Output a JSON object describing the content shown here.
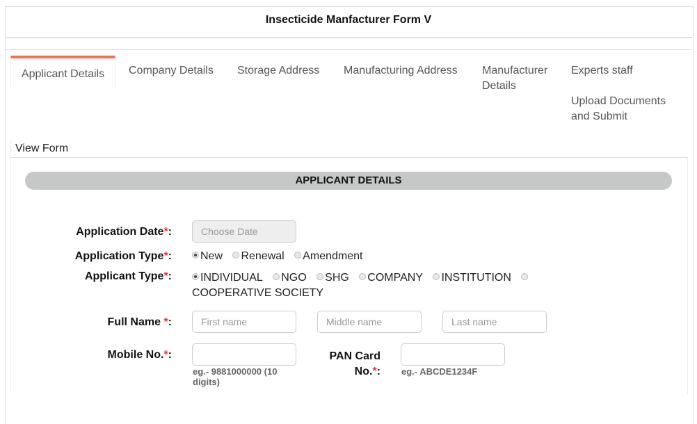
{
  "header": {
    "title": "Insecticide Manfacturer Form V"
  },
  "tabs": [
    {
      "label": "Applicant Details",
      "active": true
    },
    {
      "label": "Company Details"
    },
    {
      "label": "Storage Address"
    },
    {
      "label": "Manufacturing Address"
    },
    {
      "label": "Manufacturer Details"
    },
    {
      "label": "Experts staff"
    },
    {
      "label": "Upload Documents and Submit"
    }
  ],
  "accent_color": "#f4714f",
  "subtab": {
    "label": "View Form"
  },
  "section": {
    "title": "APPLICANT DETAILS"
  },
  "form": {
    "application_date": {
      "label": "Application Date",
      "colon": ":",
      "placeholder": "Choose Date"
    },
    "application_type": {
      "label": "Application Type",
      "options": [
        "New",
        "Renewal",
        "Amendment"
      ],
      "selected": "New"
    },
    "applicant_type": {
      "label": "Applicant Type",
      "options": [
        "INDIVIDUAL",
        "NGO",
        "SHG",
        "COMPANY",
        "INSTITUTION",
        "COOPERATIVE SOCIETY"
      ],
      "selected": "INDIVIDUAL"
    },
    "full_name": {
      "label": "Full Name ",
      "first_placeholder": "First name",
      "middle_placeholder": "Middle name",
      "last_placeholder": "Last name"
    },
    "mobile": {
      "label": "Mobile No.",
      "hint": "eg.- 9881000000 (10 digits)"
    },
    "pan": {
      "label_line1": "PAN Card",
      "label_line2": "No.",
      "hint": "eg.- ABCDE1234F"
    },
    "required_mark": "*"
  }
}
